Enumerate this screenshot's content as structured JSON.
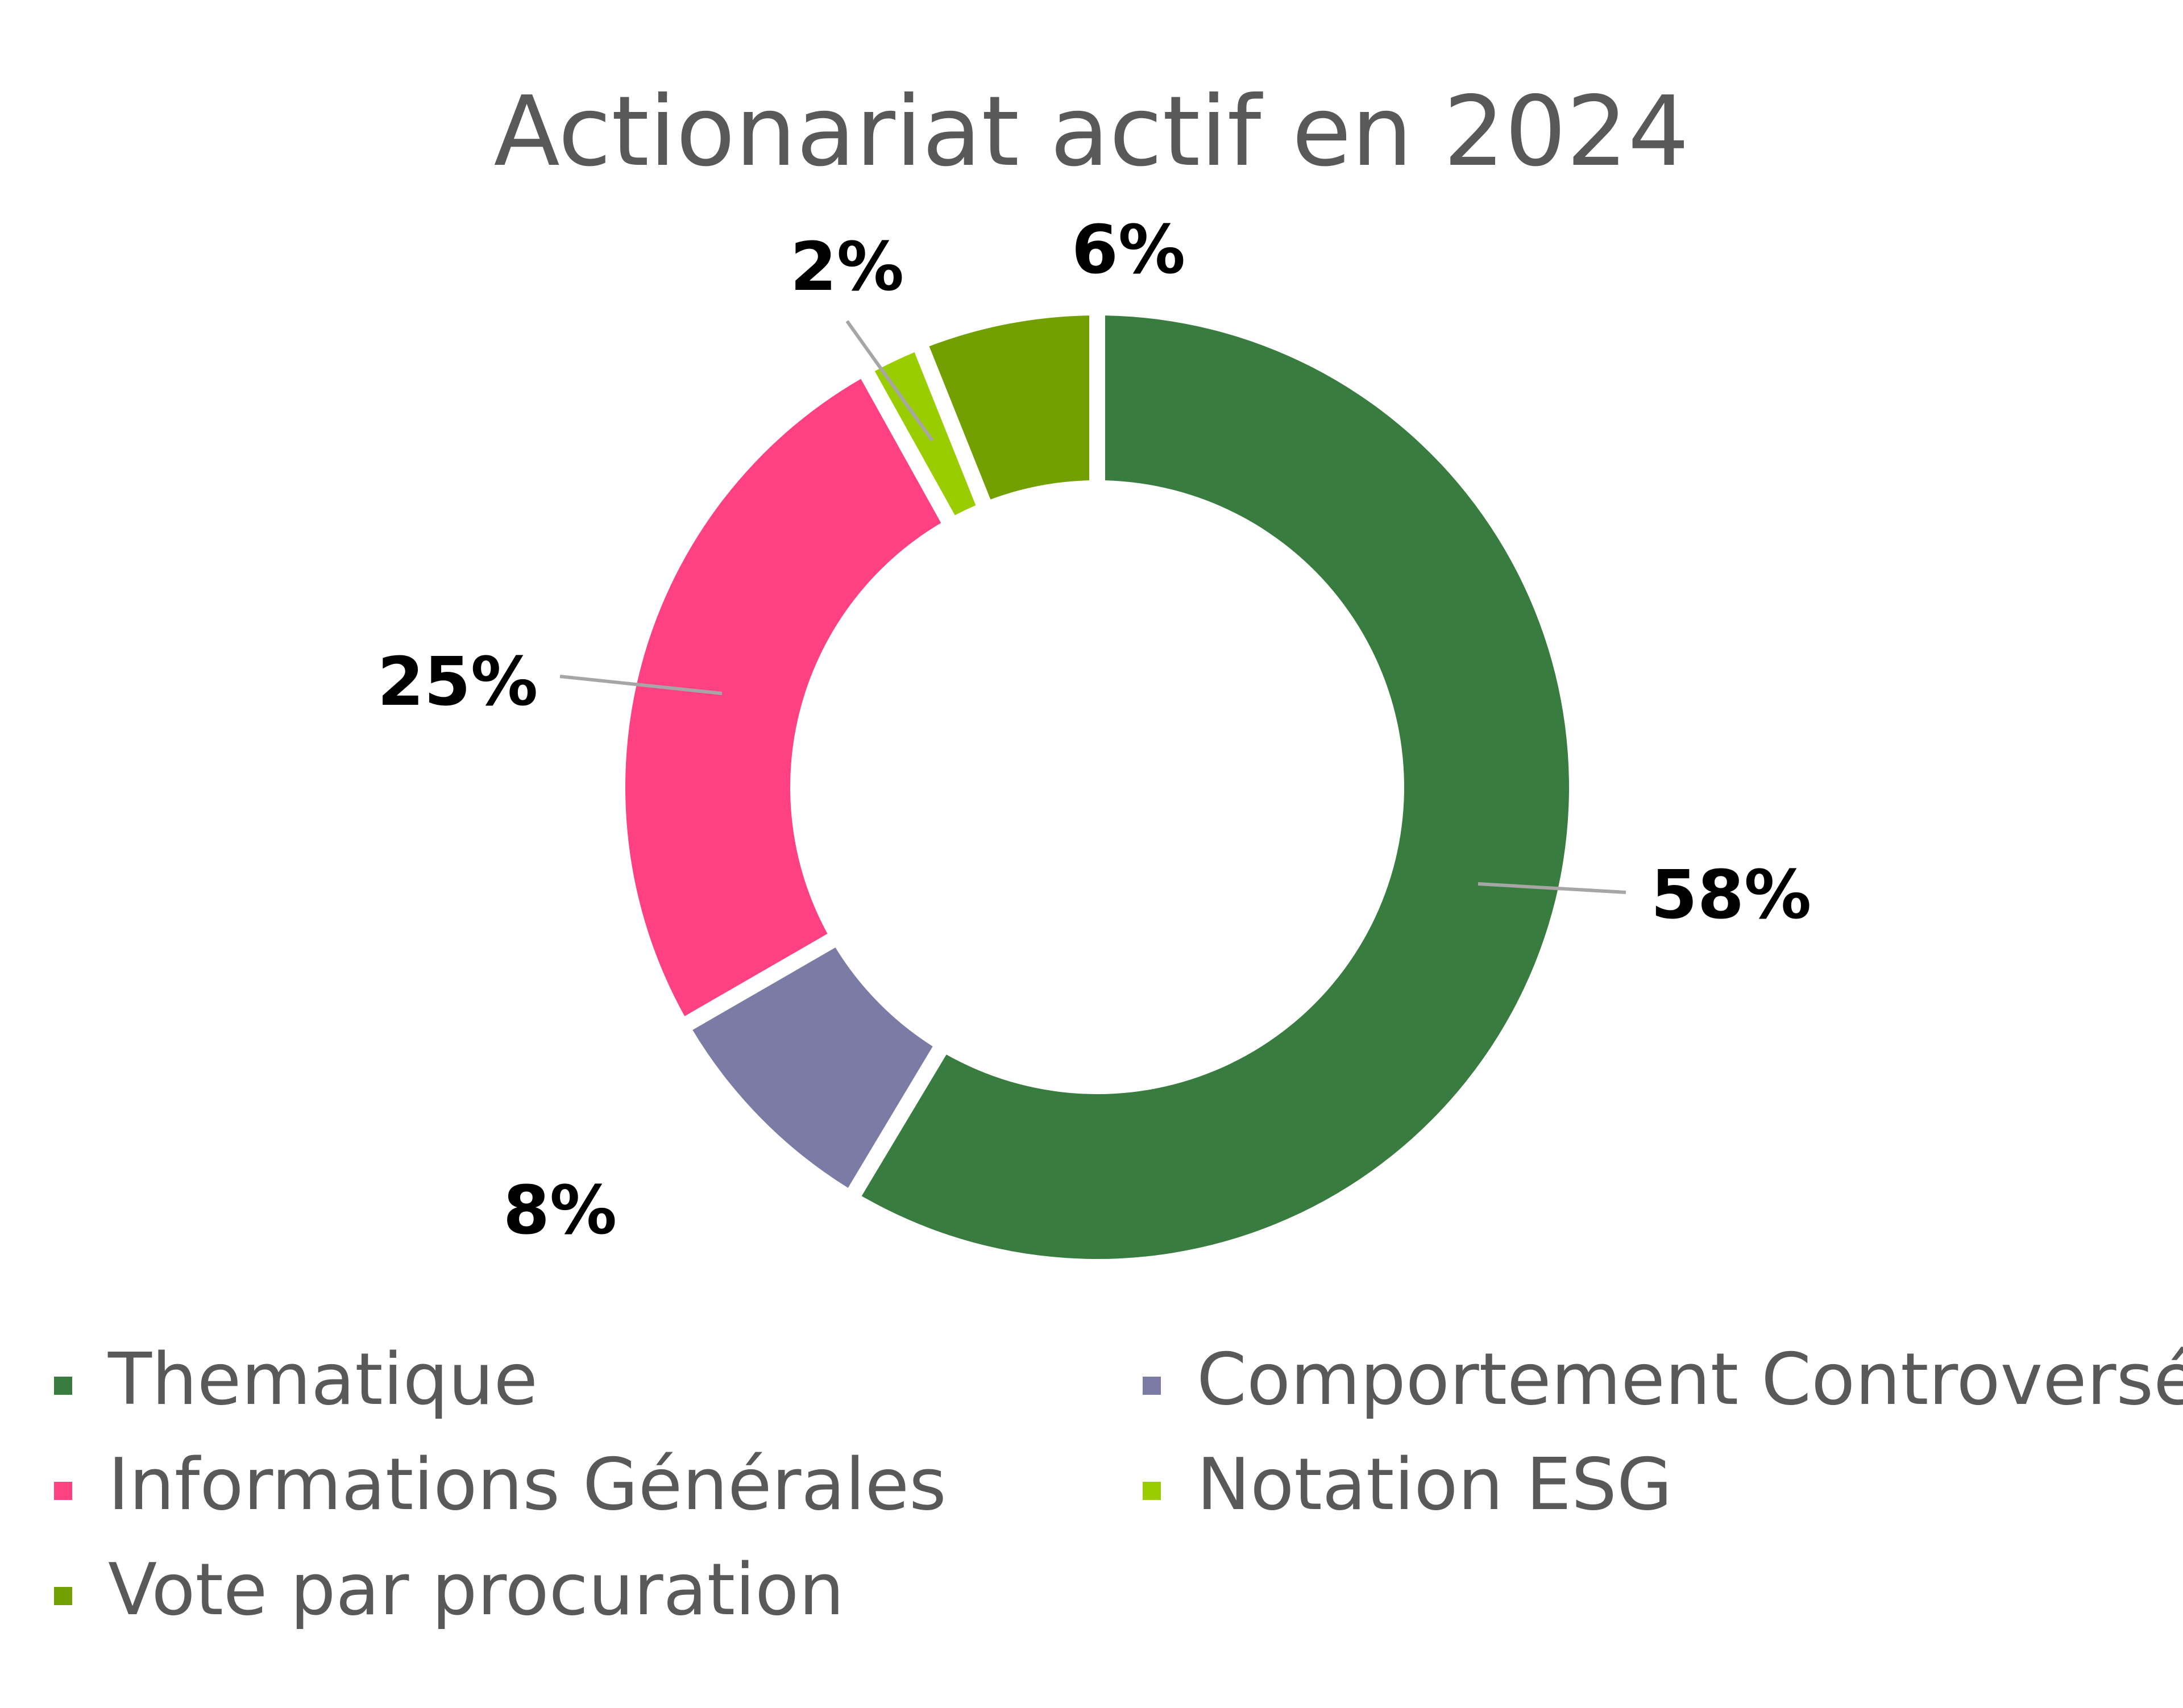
{
  "chart_data": {
    "type": "pie",
    "variant": "donut",
    "title": "Actionariat actif en 2024",
    "legend_position": "bottom",
    "slices": [
      {
        "label": "Thematique",
        "value": 58,
        "display": "58%",
        "color": "#387C3F"
      },
      {
        "label": "Comportement Controversé",
        "value": 8,
        "display": "8%",
        "color": "#7B7BA6"
      },
      {
        "label": "Informations Générales",
        "value": 25,
        "display": "25%",
        "color": "#FF4081"
      },
      {
        "label": "Notation ESG",
        "value": 2,
        "display": "2%",
        "color": "#9ACD00"
      },
      {
        "label": "Vote par procuration",
        "value": 6,
        "display": "6%",
        "color": "#72A000"
      }
    ]
  }
}
